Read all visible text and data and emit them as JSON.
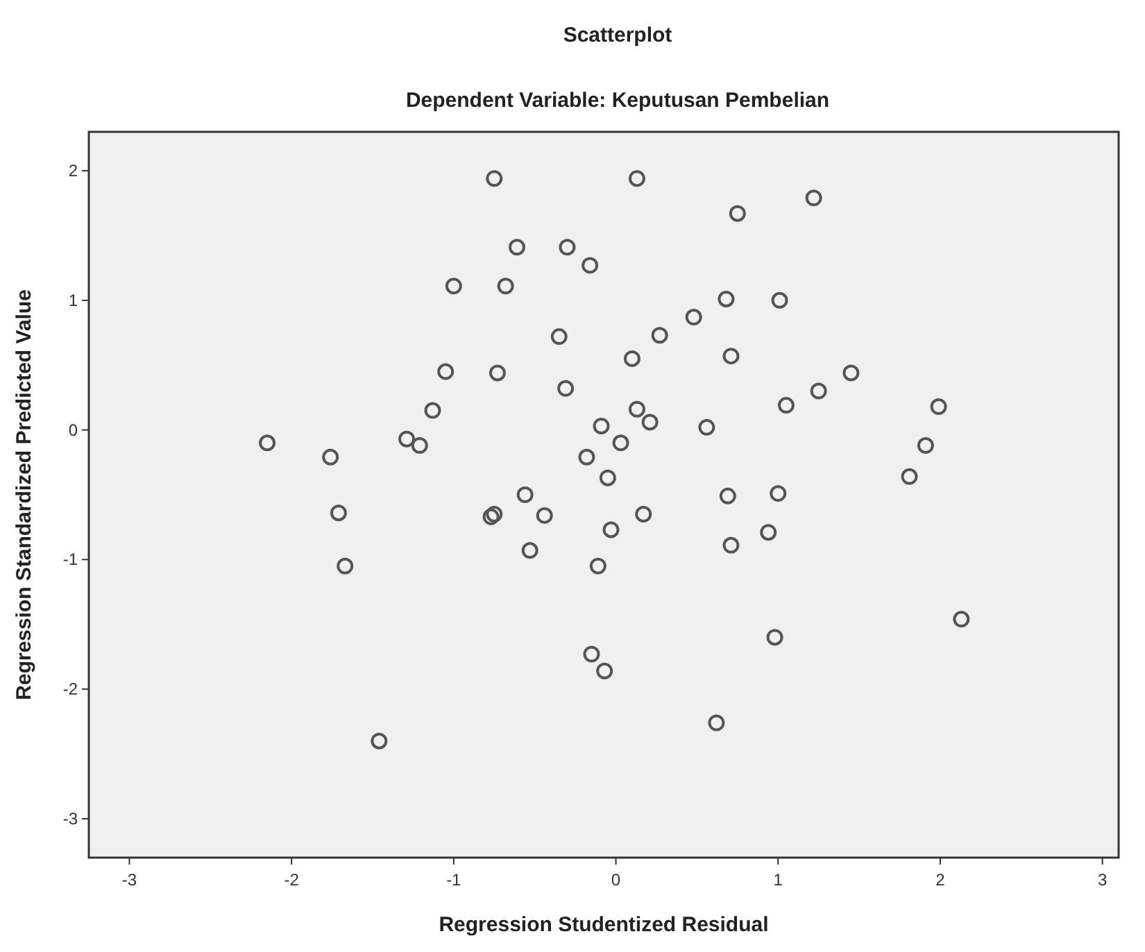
{
  "chart_data": {
    "type": "scatter",
    "title": "Scatterplot",
    "subtitle": "Dependent Variable: Keputusan Pembelian",
    "xlabel": "Regression Studentized Residual",
    "ylabel": "Regression Standardized Predicted Value",
    "xlim": [
      -3.25,
      3.1
    ],
    "ylim": [
      -3.3,
      2.3
    ],
    "xticks": [
      -3,
      -2,
      -1,
      0,
      1,
      2,
      3
    ],
    "yticks": [
      -3,
      -2,
      -1,
      0,
      1,
      2
    ],
    "grid": false,
    "marker": "circle",
    "series": [
      {
        "color": "#555555",
        "x": [
          -0.75,
          0.13,
          1.22,
          0.75,
          -0.61,
          -0.3,
          -1.0,
          -0.68,
          -0.16,
          0.68,
          1.01,
          0.48,
          0.27,
          -0.35,
          0.1,
          0.71,
          -1.05,
          -0.73,
          1.45,
          -0.31,
          1.25,
          1.05,
          1.99,
          -1.13,
          0.13,
          0.21,
          -0.09,
          0.56,
          -2.15,
          -1.29,
          -1.21,
          0.03,
          -0.18,
          1.91,
          -1.76,
          1.81,
          -0.05,
          -0.56,
          0.69,
          1.0,
          -1.71,
          -0.77,
          -0.75,
          -0.44,
          0.17,
          -0.03,
          0.94,
          -0.53,
          0.71,
          -1.67,
          -0.11,
          0.98,
          2.13,
          -0.15,
          -0.07,
          0.62,
          -1.46
        ],
        "values": [
          1.94,
          1.94,
          1.79,
          1.67,
          1.41,
          1.41,
          1.11,
          1.11,
          1.27,
          1.01,
          1.0,
          0.87,
          0.73,
          0.72,
          0.55,
          0.57,
          0.45,
          0.44,
          0.44,
          0.32,
          0.3,
          0.19,
          0.18,
          0.15,
          0.16,
          0.06,
          0.03,
          0.02,
          -0.1,
          -0.07,
          -0.12,
          -0.1,
          -0.21,
          -0.12,
          -0.21,
          -0.36,
          -0.37,
          -0.5,
          -0.51,
          -0.49,
          -0.64,
          -0.67,
          -0.65,
          -0.66,
          -0.65,
          -0.77,
          -0.79,
          -0.93,
          -0.89,
          -1.05,
          -1.05,
          -1.6,
          -1.46,
          -1.73,
          -1.86,
          -2.26,
          -2.4
        ]
      }
    ]
  }
}
